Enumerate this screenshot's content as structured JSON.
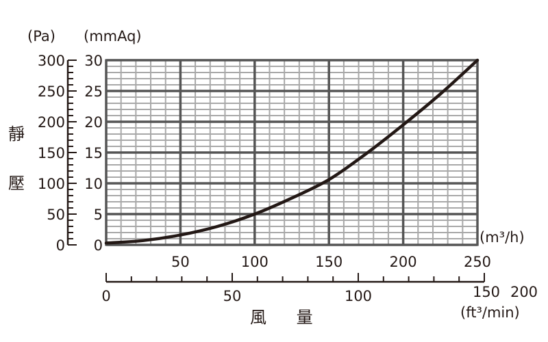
{
  "chart_data": {
    "type": "line",
    "title": "",
    "xlabel": "風 量",
    "ylabel": "靜 壓",
    "x_unit": "(m³/h)",
    "y_unit_left": "(Pa)",
    "y_unit_right": "(mmAq)",
    "x2_unit": "(ft³/min)",
    "xlim": [
      0,
      250
    ],
    "ylim": [
      0,
      30
    ],
    "x2lim": [
      0,
      150
    ],
    "grid": true,
    "x_ticks": [
      "50",
      "100",
      "150",
      "200",
      "250"
    ],
    "x_tick_values": [
      50,
      100,
      150,
      200,
      250
    ],
    "y_ticks": [
      "0",
      "5",
      "10",
      "15",
      "20",
      "25",
      "30"
    ],
    "y_tick_values": [
      0,
      5,
      10,
      15,
      20,
      25,
      30
    ],
    "y_pa_ticks": [
      "0",
      "50",
      "100",
      "150",
      "200",
      "250",
      "300"
    ],
    "y_pa_tick_values": [
      0,
      50,
      100,
      150,
      200,
      250,
      300
    ],
    "x2_ticks": [
      "0",
      "50",
      "100",
      "150",
      "200"
    ],
    "x2_tick_values": [
      0,
      50,
      100,
      150,
      200
    ],
    "series": [
      {
        "name": "static-pressure-curve",
        "x": [
          0,
          25,
          50,
          75,
          100,
          125,
          150,
          175,
          200,
          225,
          250
        ],
        "y": [
          0.3,
          0.7,
          1.6,
          3.0,
          5.0,
          7.6,
          10.6,
          14.8,
          19.5,
          24.5,
          30
        ],
        "color": "#231815"
      }
    ]
  }
}
